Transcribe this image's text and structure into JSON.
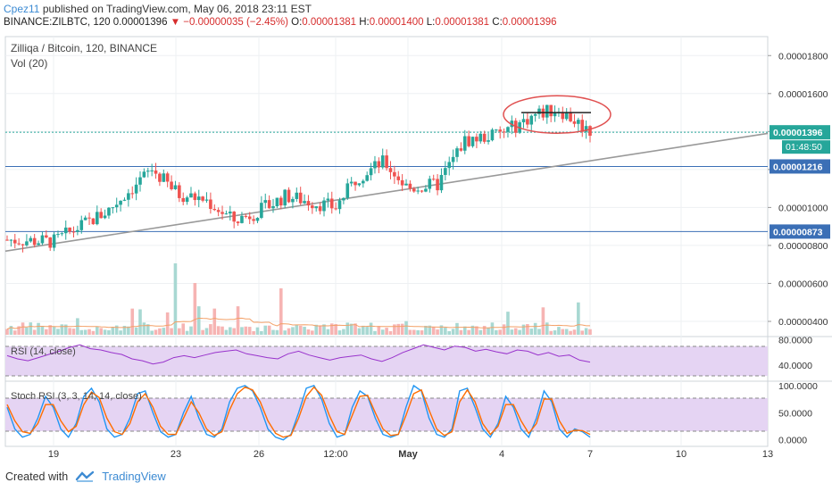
{
  "header": {
    "author": "Cpez11",
    "published": "published on TradingView.com, May 06, 2018 23:11 EST",
    "symbol_line": "BINANCE:ZILBTC, 120",
    "last": "0.00001396",
    "arrow": "▼",
    "change": "−0.00000035 (−2.45%)",
    "o_label": "O:",
    "o_value": "0.00001381",
    "h_label": "H:",
    "h_value": "0.00001400",
    "l_label": "L:",
    "l_value": "0.00001381",
    "c_label": "C:",
    "c_value": "0.00001396"
  },
  "pane_labels": {
    "main": "Zilliqa / Bitcoin, 120, BINANCE",
    "vol": "Vol (20)",
    "rsi": "RSI (14, close)",
    "stoch": "Stoch RSI (3, 3, 14, 14, close)"
  },
  "footer": {
    "created": "Created with",
    "brand": "TradingView"
  },
  "colors": {
    "up": "#26a69a",
    "down": "#ef5350",
    "rsi": "#9933cc",
    "stoch_k": "#2196f3",
    "stoch_d": "#ff6d00",
    "hline": "#3b6fb6",
    "trend": "#999999",
    "circle": "#e05050"
  },
  "chart_data": [
    {
      "type": "candlestick",
      "title": "Zilliqa / Bitcoin, 120, BINANCE",
      "x_ticks": [
        "19",
        "23",
        "26",
        "12:00",
        "May",
        "4",
        "7",
        "10",
        "13"
      ],
      "y_ticks": [
        "0.00001800",
        "0.00001600",
        "0.00001400",
        "0.00001200",
        "0.00001000",
        "0.00000800",
        "0.00000600",
        "0.00000400"
      ],
      "ylim": [
        3.2e-06,
        1.9e-05
      ],
      "price_tags": [
        {
          "value": 1.396e-05,
          "label": "0.00001396",
          "countdown": "01:48:50"
        },
        {
          "value": 1.216e-05,
          "label": "0.00001216"
        },
        {
          "value": 8.73e-06,
          "label": "0.00000873"
        }
      ],
      "horizontal_lines": [
        1.216e-05,
        8.73e-06
      ],
      "trendline": {
        "from": 7.7e-06,
        "to": 1.39e-05
      },
      "key_closes": [
        {
          "x": "start",
          "close": 8.3e-06
        },
        {
          "x": "19",
          "close": 8.2e-06
        },
        {
          "x": "21",
          "close": 9.8e-06
        },
        {
          "x": "22",
          "close": 1.2e-05
        },
        {
          "x": "23",
          "close": 1.07e-05
        },
        {
          "x": "24",
          "close": 1.04e-05
        },
        {
          "x": "25",
          "close": 9.3e-06
        },
        {
          "x": "26",
          "close": 9.8e-06
        },
        {
          "x": "27",
          "close": 1.06e-05
        },
        {
          "x": "12:00",
          "close": 1e-05
        },
        {
          "x": "29",
          "close": 1.16e-05
        },
        {
          "x": "30",
          "close": 1.24e-05
        },
        {
          "x": "May",
          "close": 1.1e-05
        },
        {
          "x": "2",
          "close": 1.12e-05
        },
        {
          "x": "3",
          "close": 1.35e-05
        },
        {
          "x": "4",
          "close": 1.39e-05
        },
        {
          "x": "5",
          "close": 1.49e-05
        },
        {
          "x": "6",
          "close": 1.52e-05
        },
        {
          "x": "7",
          "close": 1.4e-05
        }
      ],
      "volume": {
        "max_bar_index": 43,
        "note_series": "Vol (20)"
      }
    },
    {
      "type": "line",
      "title": "RSI (14, close)",
      "y_ticks": [
        "80.0000",
        "40.0000"
      ],
      "ylim": [
        15,
        85
      ],
      "series": [
        {
          "name": "RSI (14, close)",
          "values": [
            55,
            50,
            47,
            52,
            57,
            62,
            68,
            72,
            66,
            64,
            60,
            57,
            50,
            47,
            42,
            45,
            52,
            55,
            52,
            56,
            60,
            62,
            64,
            58,
            55,
            52,
            50,
            58,
            62,
            56,
            52,
            48,
            52,
            54,
            56,
            50,
            46,
            52,
            60,
            66,
            72,
            68,
            64,
            70,
            68,
            62,
            65,
            61,
            58,
            64,
            62,
            56,
            60,
            54,
            56,
            48,
            45
          ]
        }
      ],
      "dashed_levels": [
        70,
        30
      ]
    },
    {
      "type": "line",
      "title": "Stoch RSI (3, 3, 14, 14, close)",
      "y_ticks": [
        "100.0000",
        "50.0000",
        "0.0000"
      ],
      "ylim": [
        -12,
        108
      ],
      "series": [
        {
          "name": "K",
          "values": [
            60,
            20,
            5,
            10,
            40,
            80,
            60,
            20,
            5,
            30,
            80,
            95,
            70,
            20,
            5,
            10,
            40,
            85,
            90,
            50,
            15,
            5,
            10,
            50,
            80,
            40,
            10,
            5,
            20,
            70,
            95,
            100,
            90,
            60,
            20,
            5,
            0,
            10,
            50,
            95,
            100,
            75,
            30,
            5,
            10,
            60,
            90,
            80,
            40,
            10,
            5,
            10,
            60,
            100,
            90,
            40,
            10,
            5,
            20,
            90,
            95,
            60,
            20,
            5,
            30,
            80,
            60,
            20,
            5,
            40,
            90,
            70,
            20,
            5,
            20,
            15,
            5
          ]
        },
        {
          "name": "D",
          "values": [
            65,
            35,
            15,
            12,
            30,
            65,
            65,
            35,
            15,
            25,
            65,
            88,
            78,
            40,
            15,
            10,
            30,
            70,
            85,
            60,
            25,
            10,
            10,
            40,
            70,
            50,
            20,
            8,
            15,
            55,
            85,
            97,
            92,
            70,
            35,
            12,
            5,
            8,
            40,
            80,
            97,
            82,
            45,
            15,
            10,
            45,
            80,
            82,
            50,
            20,
            8,
            10,
            45,
            85,
            92,
            55,
            20,
            8,
            15,
            70,
            92,
            70,
            30,
            10,
            25,
            65,
            65,
            35,
            12,
            30,
            75,
            75,
            35,
            12,
            18,
            17,
            10
          ]
        }
      ],
      "dashed_levels": [
        80,
        20
      ]
    }
  ]
}
